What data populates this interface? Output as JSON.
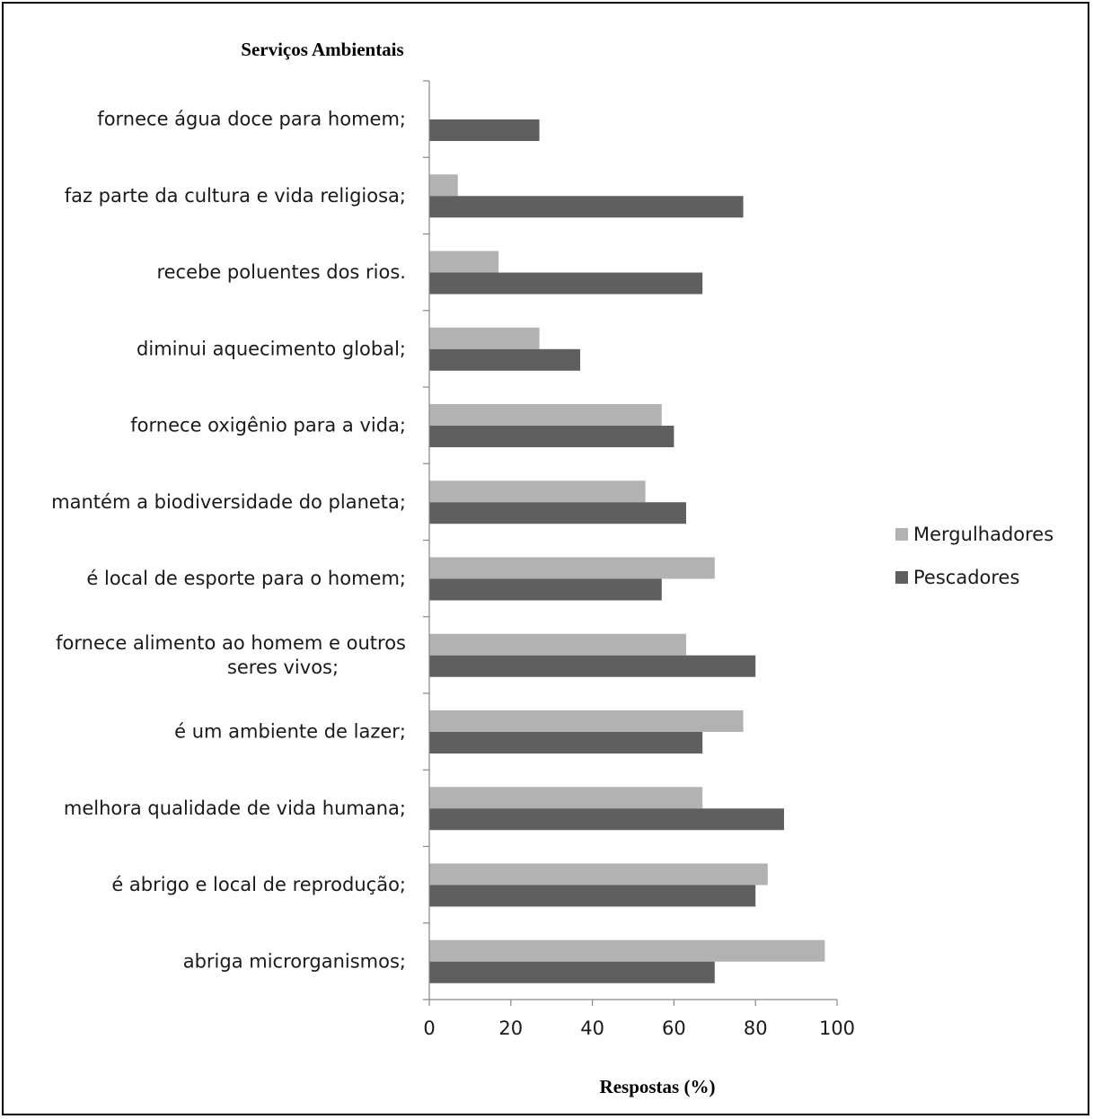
{
  "chart_data": {
    "type": "bar",
    "orientation": "horizontal",
    "title": "Serviços Ambientais",
    "xlabel": "Respostas (%)",
    "xlim": [
      0,
      100
    ],
    "xticks": [
      "0",
      "20",
      "40",
      "60",
      "80",
      "100"
    ],
    "legend_position": "right",
    "categories": [
      [
        "fornece água doce para homem;"
      ],
      [
        "faz parte da cultura e vida religiosa;"
      ],
      [
        "recebe poluentes dos rios."
      ],
      [
        "diminui aquecimento global;"
      ],
      [
        "fornece oxigênio para a vida;"
      ],
      [
        "mantém a biodiversidade do planeta;"
      ],
      [
        "é local de esporte para o homem;"
      ],
      [
        "fornece alimento ao homem e outros",
        "seres vivos;"
      ],
      [
        "é um ambiente de lazer;"
      ],
      [
        "melhora qualidade de vida humana;"
      ],
      [
        "é abrigo e local de reprodução;"
      ],
      [
        "abriga microrganismos;"
      ]
    ],
    "series": [
      {
        "name": "Mergulhadores",
        "color": "#b2b2b2",
        "values": [
          0,
          7,
          17,
          27,
          57,
          53,
          70,
          63,
          77,
          67,
          83,
          97
        ]
      },
      {
        "name": "Pescadores",
        "color": "#5f5f5f",
        "values": [
          27,
          77,
          67,
          37,
          60,
          63,
          57,
          80,
          67,
          87,
          80,
          70
        ]
      }
    ]
  }
}
